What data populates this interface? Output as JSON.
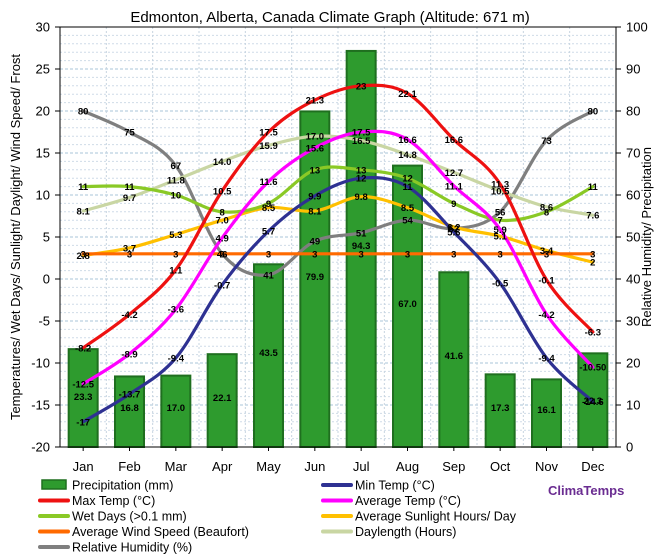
{
  "chart_data": {
    "type": "bar+line",
    "title": "Edmonton, Alberta, Canada Climate Graph (Altitude: 671 m)",
    "ylabel_left": "Temperatures/ Wet Days/ Sunlight/ Daylight/ Wind Speed/ Frost",
    "ylabel_right": "Relative Humidity/ Precipitation",
    "ylim_left": [
      -20,
      30
    ],
    "ylim_right": [
      0,
      100
    ],
    "yticks_left": [
      "-20",
      "-15",
      "-10",
      "-5",
      "0",
      "5",
      "10",
      "15",
      "20",
      "25",
      "30"
    ],
    "yticks_right": [
      "0",
      "10",
      "20",
      "30",
      "40",
      "50",
      "60",
      "70",
      "80",
      "90",
      "100"
    ],
    "categories": [
      "Jan",
      "Feb",
      "Mar",
      "Apr",
      "May",
      "Jun",
      "Jul",
      "Aug",
      "Sep",
      "Oct",
      "Nov",
      "Dec"
    ],
    "bars": {
      "name": "Precipitation (mm)",
      "axis": "right",
      "color": "#2e9b2e",
      "values": [
        23.3,
        16.8,
        17.0,
        22.1,
        43.5,
        79.9,
        94.3,
        67.0,
        41.6,
        17.3,
        16.1,
        22.3
      ],
      "labels": [
        "23.3",
        "16.8",
        "17.0",
        "22.1",
        "43.5",
        "79.9",
        "94.3",
        "67.0",
        "41.6",
        "17.3",
        "16.1",
        "22.3"
      ]
    },
    "series": [
      {
        "name": "Relative Humidity (%)",
        "axis": "right",
        "color": "#7f7f7f",
        "values": [
          80,
          75,
          67,
          46,
          41,
          49,
          51,
          54,
          52,
          56,
          73,
          80
        ],
        "labels": [
          "80",
          "75",
          "67",
          "46",
          "41",
          "49",
          "51",
          "54",
          "52",
          "56",
          "73",
          "80"
        ]
      },
      {
        "name": "Daylength (Hours)",
        "axis": "left",
        "color": "#c9d6a3",
        "values": [
          8.1,
          9.7,
          11.8,
          14.0,
          15.9,
          17.0,
          16.5,
          14.8,
          12.7,
          10.5,
          8.6,
          7.6
        ],
        "labels": [
          "8.1",
          "9.7",
          "11.8",
          "14.0",
          "15.9",
          "17.0",
          "16.5",
          "14.8",
          "12.7",
          "10.5",
          "8.6",
          "7.6"
        ]
      },
      {
        "name": "Average Sunlight Hours/ Day",
        "axis": "left",
        "color": "#ffc000",
        "values": [
          2.8,
          3.7,
          5.3,
          7.0,
          8.5,
          8.1,
          9.8,
          8.5,
          6.2,
          5.1,
          3.4,
          2.0
        ],
        "labels": [
          "2.8",
          "3.7",
          "5.3",
          "7.0",
          "8.5",
          "8.1",
          "9.8",
          "8.5",
          "6.2",
          "5.1",
          "3.4",
          "2"
        ]
      },
      {
        "name": "Average Wind Speed (Beaufort)",
        "axis": "left",
        "color": "#ff6a00",
        "values": [
          3,
          3,
          3,
          3,
          3,
          3,
          3,
          3,
          3,
          3,
          3,
          3
        ],
        "labels": [
          "3",
          "3",
          "3",
          "3",
          "3",
          "3",
          "3",
          "3",
          "3",
          "3",
          "3",
          "3"
        ]
      },
      {
        "name": "Wet Days (>0.1 mm)",
        "axis": "left",
        "color": "#8ac926",
        "values": [
          11,
          11,
          10,
          8,
          9,
          13,
          13,
          12,
          9,
          7,
          8,
          11
        ],
        "labels": [
          "11",
          "11",
          "10",
          "8",
          "9",
          "13",
          "13",
          "12",
          "9",
          "7",
          "8",
          "11"
        ]
      },
      {
        "name": "Min Temp (°C)",
        "axis": "left",
        "color": "#2e3192",
        "values": [
          -17,
          -13.7,
          -9.4,
          -0.7,
          5.7,
          9.9,
          12,
          11,
          5.6,
          -0.5,
          -9.4,
          -14.6
        ],
        "labels": [
          "-17",
          "-13.7",
          "-9.4",
          "-0.7",
          "5.7",
          "9.9",
          "12",
          "11",
          "5.6",
          "-0.5",
          "-9.4",
          "-14.6"
        ]
      },
      {
        "name": "Average Temp (°C)",
        "axis": "left",
        "color": "#ff00ff",
        "values": [
          -12.5,
          -8.9,
          -3.6,
          4.9,
          11.6,
          15.6,
          17.5,
          16.6,
          11.1,
          5.9,
          -4.2,
          -10.5
        ],
        "labels": [
          "-12.5",
          "-8.9",
          "-3.6",
          "4.9",
          "11.6",
          "15.6",
          "17.5",
          "16.6",
          "11.1",
          "5.9",
          "-4.2",
          "-10.50"
        ]
      },
      {
        "name": "Max Temp (°C)",
        "axis": "left",
        "color": "#ee1111",
        "values": [
          -8.2,
          -4.2,
          1.1,
          10.5,
          17.5,
          21.3,
          23,
          22.1,
          16.6,
          11.3,
          -0.1,
          -6.3
        ],
        "labels": [
          "-8.2",
          "-4.2",
          "1.1",
          "10.5",
          "17.5",
          "21.3",
          "23",
          "22.1",
          "16.6",
          "11.3",
          "-0.1",
          "-6.3"
        ]
      }
    ],
    "legend": [
      {
        "label": "Precipitation (mm)",
        "type": "bar",
        "color": "#2e9b2e"
      },
      {
        "label": "Min Temp (°C)",
        "type": "line",
        "color": "#2e3192"
      },
      {
        "label": "Max Temp (°C)",
        "type": "line",
        "color": "#ee1111"
      },
      {
        "label": "Average Temp (°C)",
        "type": "line",
        "color": "#ff00ff"
      },
      {
        "label": "Wet Days (>0.1 mm)",
        "type": "line",
        "color": "#8ac926"
      },
      {
        "label": "Average Sunlight Hours/ Day",
        "type": "line",
        "color": "#ffc000"
      },
      {
        "label": "Average Wind Speed (Beaufort)",
        "type": "line",
        "color": "#ff6a00"
      },
      {
        "label": "Daylength (Hours)",
        "type": "line",
        "color": "#c9d6a3"
      },
      {
        "label": "Relative Humidity (%)",
        "type": "line",
        "color": "#7f7f7f"
      }
    ],
    "brand": "ClimaTemps"
  }
}
